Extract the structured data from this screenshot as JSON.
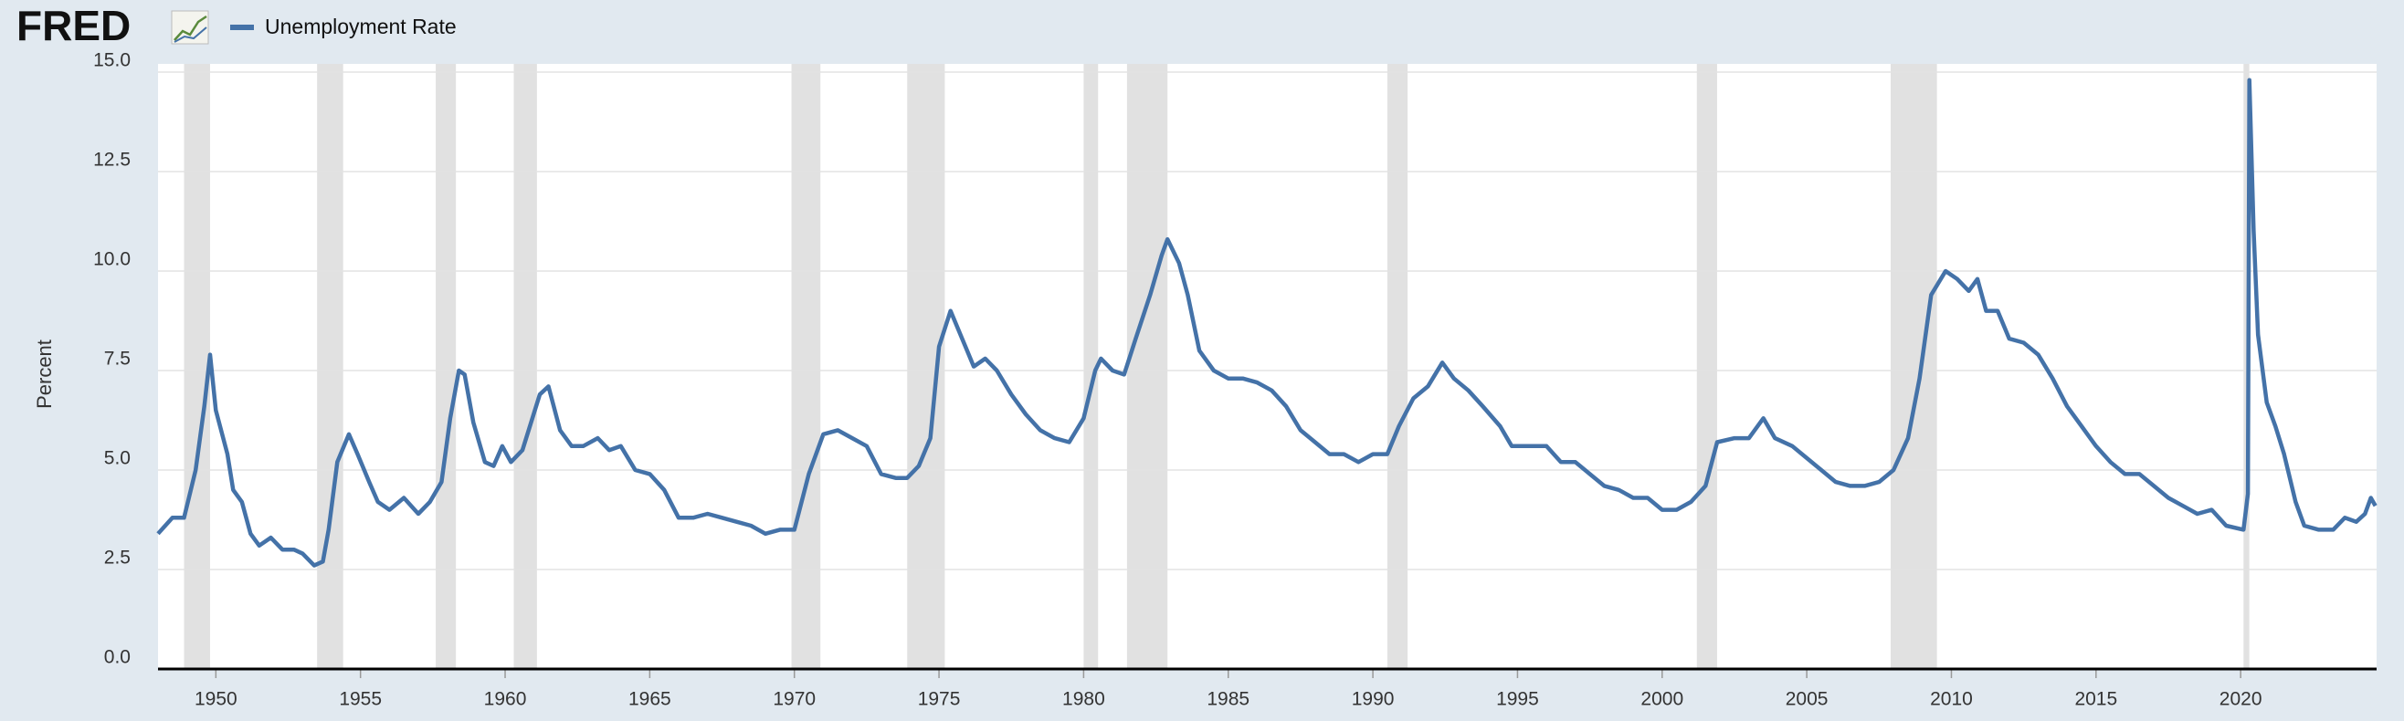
{
  "chart_data": {
    "type": "line",
    "logo": "FRED",
    "ylabel": "Percent",
    "x": [
      1948.0,
      1948.5,
      1948.9,
      1949.3,
      1949.6,
      1949.8,
      1950.0,
      1950.4,
      1950.6,
      1950.9,
      1951.2,
      1951.5,
      1951.9,
      1952.3,
      1952.7,
      1953.0,
      1953.4,
      1953.7,
      1953.9,
      1954.2,
      1954.6,
      1954.9,
      1955.3,
      1955.6,
      1956.0,
      1956.5,
      1957.0,
      1957.4,
      1957.8,
      1958.1,
      1958.4,
      1958.6,
      1958.9,
      1959.3,
      1959.6,
      1959.9,
      1960.2,
      1960.6,
      1960.9,
      1961.2,
      1961.5,
      1961.9,
      1962.3,
      1962.7,
      1963.2,
      1963.6,
      1964.0,
      1964.5,
      1965.0,
      1965.5,
      1966.0,
      1966.5,
      1967.0,
      1967.5,
      1968.0,
      1968.5,
      1969.0,
      1969.5,
      1970.0,
      1970.5,
      1971.0,
      1971.5,
      1972.0,
      1972.5,
      1973.0,
      1973.5,
      1973.9,
      1974.3,
      1974.7,
      1975.0,
      1975.4,
      1975.8,
      1976.2,
      1976.6,
      1977.0,
      1977.5,
      1978.0,
      1978.5,
      1979.0,
      1979.5,
      1980.0,
      1980.4,
      1980.6,
      1981.0,
      1981.4,
      1981.8,
      1982.3,
      1982.7,
      1982.9,
      1983.3,
      1983.6,
      1984.0,
      1984.5,
      1985.0,
      1985.5,
      1986.0,
      1986.5,
      1987.0,
      1987.5,
      1988.0,
      1988.5,
      1989.0,
      1989.5,
      1990.0,
      1990.5,
      1990.9,
      1991.4,
      1991.9,
      1992.4,
      1992.8,
      1993.3,
      1993.8,
      1994.4,
      1994.8,
      1995.5,
      1996.0,
      1996.5,
      1997.0,
      1997.5,
      1998.0,
      1998.5,
      1999.0,
      1999.5,
      2000.0,
      2000.5,
      2001.0,
      2001.5,
      2001.9,
      2002.5,
      2003.0,
      2003.5,
      2003.9,
      2004.5,
      2005.0,
      2005.5,
      2006.0,
      2006.5,
      2007.0,
      2007.5,
      2008.0,
      2008.5,
      2008.9,
      2009.3,
      2009.8,
      2010.2,
      2010.6,
      2010.9,
      2011.2,
      2011.6,
      2012.0,
      2012.5,
      2013.0,
      2013.5,
      2014.0,
      2014.5,
      2015.0,
      2015.5,
      2016.0,
      2016.5,
      2017.0,
      2017.5,
      2018.0,
      2018.5,
      2019.0,
      2019.5,
      2020.1,
      2020.25,
      2020.3,
      2020.45,
      2020.6,
      2020.9,
      2021.2,
      2021.5,
      2021.9,
      2022.2,
      2022.7,
      2023.2,
      2023.6,
      2024.0,
      2024.3,
      2024.5,
      2024.66
    ],
    "series": [
      {
        "name": "Unemployment Rate",
        "color": "#4472a8",
        "values": [
          3.4,
          3.8,
          3.8,
          5.0,
          6.6,
          7.9,
          6.5,
          5.4,
          4.5,
          4.2,
          3.4,
          3.1,
          3.3,
          3.0,
          3.0,
          2.9,
          2.6,
          2.7,
          3.5,
          5.2,
          5.9,
          5.4,
          4.7,
          4.2,
          4.0,
          4.3,
          3.9,
          4.2,
          4.7,
          6.3,
          7.5,
          7.4,
          6.2,
          5.2,
          5.1,
          5.6,
          5.2,
          5.5,
          6.2,
          6.9,
          7.1,
          6.0,
          5.6,
          5.6,
          5.8,
          5.5,
          5.6,
          5.0,
          4.9,
          4.5,
          3.8,
          3.8,
          3.9,
          3.8,
          3.7,
          3.6,
          3.4,
          3.5,
          3.5,
          4.9,
          5.9,
          6.0,
          5.8,
          5.6,
          4.9,
          4.8,
          4.8,
          5.1,
          5.8,
          8.1,
          9.0,
          8.3,
          7.6,
          7.8,
          7.5,
          6.9,
          6.4,
          6.0,
          5.8,
          5.7,
          6.3,
          7.5,
          7.8,
          7.5,
          7.4,
          8.3,
          9.4,
          10.4,
          10.8,
          10.2,
          9.4,
          8.0,
          7.5,
          7.3,
          7.3,
          7.2,
          7.0,
          6.6,
          6.0,
          5.7,
          5.4,
          5.4,
          5.2,
          5.4,
          5.4,
          6.1,
          6.8,
          7.1,
          7.7,
          7.3,
          7.0,
          6.6,
          6.1,
          5.6,
          5.6,
          5.6,
          5.2,
          5.2,
          4.9,
          4.6,
          4.5,
          4.3,
          4.3,
          4.0,
          4.0,
          4.2,
          4.6,
          5.7,
          5.8,
          5.8,
          6.3,
          5.8,
          5.6,
          5.3,
          5.0,
          4.7,
          4.6,
          4.6,
          4.7,
          5.0,
          5.8,
          7.3,
          9.4,
          10.0,
          9.8,
          9.5,
          9.8,
          9.0,
          9.0,
          8.3,
          8.2,
          7.9,
          7.3,
          6.6,
          6.1,
          5.6,
          5.2,
          4.9,
          4.9,
          4.6,
          4.3,
          4.1,
          3.9,
          4.0,
          3.6,
          3.5,
          4.4,
          14.8,
          11.0,
          8.4,
          6.7,
          6.1,
          5.4,
          4.2,
          3.6,
          3.5,
          3.5,
          3.8,
          3.7,
          3.9,
          4.3,
          4.1
        ]
      }
    ],
    "recessions": [
      [
        1948.9,
        1949.8
      ],
      [
        1953.5,
        1954.4
      ],
      [
        1957.6,
        1958.3
      ],
      [
        1960.3,
        1961.1
      ],
      [
        1969.9,
        1970.9
      ],
      [
        1973.9,
        1975.2
      ],
      [
        1980.0,
        1980.5
      ],
      [
        1981.5,
        1982.9
      ],
      [
        1990.5,
        1991.2
      ],
      [
        2001.2,
        2001.9
      ],
      [
        2007.9,
        2009.5
      ],
      [
        2020.1,
        2020.3
      ]
    ],
    "recession_color": "#e1e1e1",
    "xlim": [
      1948.0,
      2024.7
    ],
    "xticks": [
      1950,
      1955,
      1960,
      1965,
      1970,
      1975,
      1980,
      1985,
      1990,
      1995,
      2000,
      2005,
      2010,
      2015,
      2020
    ],
    "ylim": [
      0,
      15
    ],
    "yticks": [
      {
        "value": 0,
        "label": "0.0"
      },
      2.5,
      {
        "value": 5,
        "label": "5.0"
      },
      7.5,
      {
        "value": 10,
        "label": "10.0"
      },
      12.5,
      {
        "value": 15,
        "label": "15.0"
      }
    ],
    "grid": true
  }
}
